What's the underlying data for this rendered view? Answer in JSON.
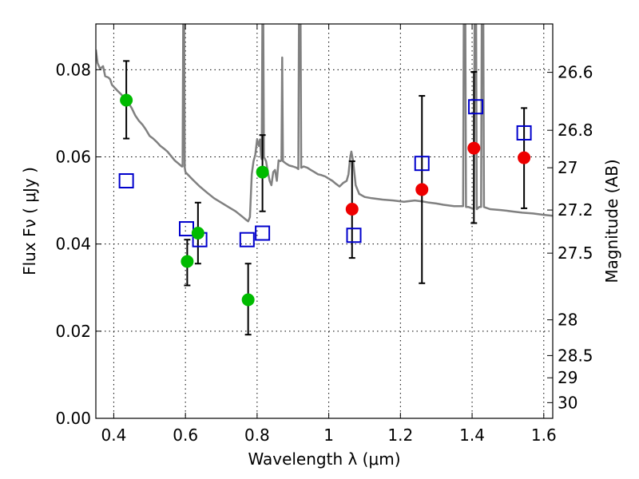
{
  "chart_data": {
    "type": "scatter",
    "xlabel": "Wavelength  λ (μm)",
    "ylabel": "Flux  Fν  ( μJy )",
    "y2label": "Magnitude (AB)",
    "xlim": [
      0.35,
      1.625
    ],
    "ylim": [
      0.0,
      0.0905
    ],
    "grid": true,
    "x_ticks": [
      0.4,
      0.6,
      0.8,
      1.0,
      1.2,
      1.4,
      1.6
    ],
    "x_tick_labels": [
      "0.4",
      "0.6",
      "0.8",
      "1",
      "1.2",
      "1.4",
      "1.6"
    ],
    "y_ticks": [
      0.0,
      0.02,
      0.04,
      0.06,
      0.08
    ],
    "y_tick_labels": [
      "0.00",
      "0.02",
      "0.04",
      "0.06",
      "0.08"
    ],
    "y2_ticks": [
      {
        "flux": 0.0794,
        "label": "26.6"
      },
      {
        "flux": 0.0661,
        "label": "26.8"
      },
      {
        "flux": 0.0575,
        "label": "27"
      },
      {
        "flux": 0.0478,
        "label": "27.2"
      },
      {
        "flux": 0.0379,
        "label": "27.5"
      },
      {
        "flux": 0.0226,
        "label": "28"
      },
      {
        "flux": 0.0144,
        "label": "28.5"
      },
      {
        "flux": 0.0093,
        "label": "29"
      },
      {
        "flux": 0.0036,
        "label": "30"
      }
    ],
    "colors": {
      "model": "#808080",
      "green": "#00bb00",
      "red": "#ee0000",
      "blue": "#0000cc",
      "errorbar": "#000000"
    },
    "series": [
      {
        "name": "model_spectrum",
        "type": "line",
        "points": [
          [
            0.35,
            0.0846
          ],
          [
            0.355,
            0.0815
          ],
          [
            0.362,
            0.0802
          ],
          [
            0.37,
            0.0808
          ],
          [
            0.376,
            0.0785
          ],
          [
            0.385,
            0.0782
          ],
          [
            0.39,
            0.0778
          ],
          [
            0.395,
            0.0765
          ],
          [
            0.4,
            0.0761
          ],
          [
            0.41,
            0.0752
          ],
          [
            0.42,
            0.0744
          ],
          [
            0.43,
            0.0735
          ],
          [
            0.44,
            0.0725
          ],
          [
            0.45,
            0.0712
          ],
          [
            0.46,
            0.0695
          ],
          [
            0.47,
            0.0683
          ],
          [
            0.48,
            0.0674
          ],
          [
            0.49,
            0.0662
          ],
          [
            0.5,
            0.0648
          ],
          [
            0.51,
            0.0642
          ],
          [
            0.52,
            0.0634
          ],
          [
            0.53,
            0.0625
          ],
          [
            0.54,
            0.0619
          ],
          [
            0.55,
            0.0612
          ],
          [
            0.56,
            0.0602
          ],
          [
            0.57,
            0.0592
          ],
          [
            0.58,
            0.0585
          ],
          [
            0.59,
            0.0578
          ],
          [
            0.592,
            0.0578
          ],
          [
            0.594,
            0.095
          ],
          [
            0.596,
            0.095
          ],
          [
            0.598,
            0.0575
          ],
          [
            0.6,
            0.0565
          ],
          [
            0.62,
            0.0548
          ],
          [
            0.64,
            0.0532
          ],
          [
            0.66,
            0.0518
          ],
          [
            0.68,
            0.0505
          ],
          [
            0.7,
            0.0495
          ],
          [
            0.72,
            0.0485
          ],
          [
            0.74,
            0.0475
          ],
          [
            0.76,
            0.0462
          ],
          [
            0.77,
            0.0455
          ],
          [
            0.775,
            0.0452
          ],
          [
            0.78,
            0.0462
          ],
          [
            0.785,
            0.056
          ],
          [
            0.79,
            0.059
          ],
          [
            0.795,
            0.0605
          ],
          [
            0.8,
            0.064
          ],
          [
            0.805,
            0.0625
          ],
          [
            0.808,
            0.064
          ],
          [
            0.811,
            0.0602
          ],
          [
            0.813,
            0.0595
          ],
          [
            0.815,
            0.095
          ],
          [
            0.817,
            0.095
          ],
          [
            0.819,
            0.06
          ],
          [
            0.825,
            0.059
          ],
          [
            0.83,
            0.0565
          ],
          [
            0.835,
            0.0545
          ],
          [
            0.84,
            0.0535
          ],
          [
            0.845,
            0.0565
          ],
          [
            0.85,
            0.057
          ],
          [
            0.855,
            0.0545
          ],
          [
            0.86,
            0.0592
          ],
          [
            0.865,
            0.059
          ],
          [
            0.868,
            0.0592
          ],
          [
            0.87,
            0.0828
          ],
          [
            0.872,
            0.059
          ],
          [
            0.88,
            0.0585
          ],
          [
            0.89,
            0.058
          ],
          [
            0.9,
            0.0578
          ],
          [
            0.91,
            0.0575
          ],
          [
            0.915,
            0.0572
          ],
          [
            0.917,
            0.095
          ],
          [
            0.921,
            0.095
          ],
          [
            0.923,
            0.0575
          ],
          [
            0.93,
            0.0578
          ],
          [
            0.94,
            0.0575
          ],
          [
            0.95,
            0.057
          ],
          [
            0.96,
            0.0565
          ],
          [
            0.97,
            0.056
          ],
          [
            0.98,
            0.0558
          ],
          [
            0.99,
            0.0555
          ],
          [
            1.0,
            0.055
          ],
          [
            1.01,
            0.0545
          ],
          [
            1.02,
            0.0538
          ],
          [
            1.03,
            0.0532
          ],
          [
            1.04,
            0.054
          ],
          [
            1.05,
            0.0545
          ],
          [
            1.055,
            0.056
          ],
          [
            1.06,
            0.06
          ],
          [
            1.063,
            0.0612
          ],
          [
            1.068,
            0.059
          ],
          [
            1.075,
            0.0535
          ],
          [
            1.085,
            0.0515
          ],
          [
            1.1,
            0.0508
          ],
          [
            1.12,
            0.0505
          ],
          [
            1.15,
            0.0502
          ],
          [
            1.18,
            0.05
          ],
          [
            1.21,
            0.0497
          ],
          [
            1.24,
            0.05
          ],
          [
            1.26,
            0.0498
          ],
          [
            1.28,
            0.0495
          ],
          [
            1.3,
            0.0493
          ],
          [
            1.32,
            0.049
          ],
          [
            1.35,
            0.0487
          ],
          [
            1.375,
            0.0487
          ],
          [
            1.377,
            0.095
          ],
          [
            1.381,
            0.095
          ],
          [
            1.383,
            0.0485
          ],
          [
            1.39,
            0.0485
          ],
          [
            1.4,
            0.0482
          ],
          [
            1.405,
            0.048
          ],
          [
            1.407,
            0.095
          ],
          [
            1.411,
            0.095
          ],
          [
            1.413,
            0.048
          ],
          [
            1.42,
            0.0485
          ],
          [
            1.425,
            0.0485
          ],
          [
            1.427,
            0.095
          ],
          [
            1.431,
            0.095
          ],
          [
            1.433,
            0.0485
          ],
          [
            1.45,
            0.048
          ],
          [
            1.48,
            0.0478
          ],
          [
            1.51,
            0.0475
          ],
          [
            1.54,
            0.0472
          ],
          [
            1.57,
            0.047
          ],
          [
            1.6,
            0.0467
          ],
          [
            1.625,
            0.0465
          ]
        ]
      },
      {
        "name": "observed_green",
        "type": "scatter",
        "marker": "circle",
        "points": [
          {
            "x": 0.435,
            "y": 0.073,
            "lo": 0.0642,
            "hi": 0.082
          },
          {
            "x": 0.605,
            "y": 0.036,
            "lo": 0.0305,
            "hi": 0.041
          },
          {
            "x": 0.635,
            "y": 0.0425,
            "lo": 0.0355,
            "hi": 0.0495
          },
          {
            "x": 0.775,
            "y": 0.0272,
            "lo": 0.0192,
            "hi": 0.0355
          },
          {
            "x": 0.815,
            "y": 0.0565,
            "lo": 0.0475,
            "hi": 0.065
          }
        ]
      },
      {
        "name": "observed_red",
        "type": "scatter",
        "marker": "circle",
        "points": [
          {
            "x": 1.065,
            "y": 0.048,
            "lo": 0.0368,
            "hi": 0.059
          },
          {
            "x": 1.26,
            "y": 0.0525,
            "lo": 0.031,
            "hi": 0.074
          },
          {
            "x": 1.405,
            "y": 0.062,
            "lo": 0.0448,
            "hi": 0.0795
          },
          {
            "x": 1.545,
            "y": 0.0598,
            "lo": 0.0482,
            "hi": 0.0712
          }
        ]
      },
      {
        "name": "model_bandpass",
        "type": "scatter",
        "marker": "open-square",
        "points": [
          {
            "x": 0.435,
            "y": 0.0545
          },
          {
            "x": 0.603,
            "y": 0.0435
          },
          {
            "x": 0.64,
            "y": 0.041
          },
          {
            "x": 0.772,
            "y": 0.041
          },
          {
            "x": 0.815,
            "y": 0.0425
          },
          {
            "x": 1.07,
            "y": 0.042
          },
          {
            "x": 1.26,
            "y": 0.0585
          },
          {
            "x": 1.41,
            "y": 0.0715
          },
          {
            "x": 1.545,
            "y": 0.0655
          }
        ]
      }
    ]
  }
}
